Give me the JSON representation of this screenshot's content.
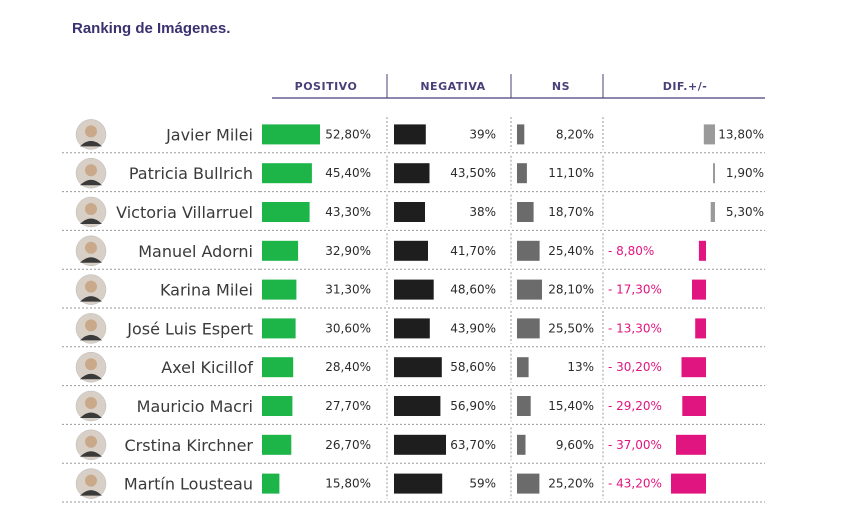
{
  "title": "Ranking de Imágenes.",
  "colors": {
    "positivo": "#1db548",
    "negativa": "#1e1e1e",
    "ns": "#6b6b6b",
    "dif_pos": "#9a9a9a",
    "dif_neg": "#e0157f",
    "header": "#4b3f7a",
    "rule": "#4b3f7a"
  },
  "chart_data": {
    "type": "bar",
    "columns": [
      "POSITIVO",
      "NEGATIVA",
      "NS",
      "DIF.+/-"
    ],
    "categories": [
      "Javier Milei",
      "Patricia Bullrich",
      "Victoria Villarruel",
      "Manuel Adorni",
      "Karina Milei",
      "José Luis Espert",
      "Axel Kicillof",
      "Mauricio Macri",
      "Crstina Kirchner",
      "Martín Lousteau"
    ],
    "series": [
      {
        "name": "POSITIVO",
        "values": [
          52.8,
          45.4,
          43.3,
          32.9,
          31.3,
          30.6,
          28.4,
          27.7,
          26.7,
          15.8
        ],
        "labels": [
          "52,80%",
          "45,40%",
          "43,30%",
          "32,90%",
          "31,30%",
          "30,60%",
          "28,40%",
          "27,70%",
          "26,70%",
          "15,80%"
        ]
      },
      {
        "name": "NEGATIVA",
        "values": [
          39,
          43.5,
          38,
          41.7,
          48.6,
          43.9,
          58.6,
          56.9,
          63.7,
          59
        ],
        "labels": [
          "39%",
          "43,50%",
          "38%",
          "41,70%",
          "48,60%",
          "43,90%",
          "58,60%",
          "56,90%",
          "63,70%",
          "59%"
        ]
      },
      {
        "name": "NS",
        "values": [
          8.2,
          11.1,
          18.7,
          25.4,
          28.1,
          25.5,
          13,
          15.4,
          9.6,
          25.2
        ],
        "labels": [
          "8,20%",
          "11,10%",
          "18,70%",
          "25,40%",
          "28,10%",
          "25,50%",
          "13%",
          "15,40%",
          "9,60%",
          "25,20%"
        ]
      },
      {
        "name": "DIF.+/-",
        "values": [
          13.8,
          1.9,
          5.3,
          -8.8,
          -17.3,
          -13.3,
          -30.2,
          -29.2,
          -37.0,
          -43.2
        ],
        "labels": [
          "13,80%",
          "1,90%",
          "5,30%",
          "- 8,80%",
          "- 17,30%",
          "- 13,30%",
          "- 30,20%",
          "- 29,20%",
          "- 37,00%",
          "- 43,20%"
        ]
      }
    ],
    "avatars": [
      "avatar-javier-milei",
      "avatar-patricia-bullrich",
      "avatar-victoria-villarruel",
      "avatar-manuel-adorni",
      "avatar-karina-milei",
      "avatar-jose-luis-espert",
      "avatar-axel-kicillof",
      "avatar-mauricio-macri",
      "avatar-crstina-kirchner",
      "avatar-martin-lousteau"
    ],
    "legend": "none",
    "grid": false
  }
}
